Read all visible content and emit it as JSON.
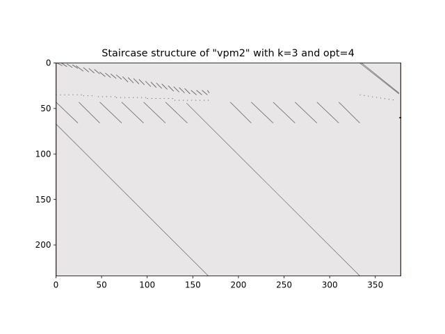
{
  "chart_data": {
    "type": "heatmap",
    "title": "Staircase structure of \"vpm2\" with k=3 and opt=4",
    "xlabel": "",
    "ylabel": "",
    "matrix": {
      "columns": 378,
      "rows": 234
    },
    "xlim": [
      0,
      378
    ],
    "ylim": [
      234,
      0
    ],
    "x_ticks": [
      0,
      50,
      100,
      150,
      200,
      250,
      300,
      350
    ],
    "y_ticks": [
      0,
      50,
      100,
      150,
      200
    ],
    "background_color": "#e8e6e6",
    "nonzero_color": "#555555",
    "border_column_color": "#e0a07a",
    "structure": {
      "long_diagonals": [
        {
          "col_start": 0,
          "row_start": 67,
          "col_end": 167,
          "row_end": 234
        },
        {
          "col_start": 143,
          "row_start": 44,
          "col_end": 333,
          "row_end": 234
        }
      ],
      "top_right_diagonals": [
        {
          "col_start": 333,
          "row_start": 0,
          "col_end": 376,
          "row_end": 34
        },
        {
          "col_start": 335,
          "row_start": 0,
          "col_end": 376,
          "row_end": 33
        }
      ],
      "small_segments_top": [
        {
          "col_start": 1,
          "col_end": 7,
          "row_start": 0,
          "row_end": 3
        },
        {
          "col_start": 6,
          "col_end": 12,
          "row_start": 0,
          "row_end": 4
        },
        {
          "col_start": 12,
          "col_end": 18,
          "row_start": 1,
          "row_end": 5
        },
        {
          "col_start": 18,
          "col_end": 24,
          "row_start": 2,
          "row_end": 6
        },
        {
          "col_start": 22,
          "col_end": 30,
          "row_start": 3,
          "row_end": 9
        },
        {
          "col_start": 30,
          "col_end": 36,
          "row_start": 5,
          "row_end": 10
        },
        {
          "col_start": 36,
          "col_end": 42,
          "row_start": 6,
          "row_end": 11
        },
        {
          "col_start": 42,
          "col_end": 48,
          "row_start": 7,
          "row_end": 12
        },
        {
          "col_start": 48,
          "col_end": 54,
          "row_start": 10,
          "row_end": 15
        },
        {
          "col_start": 54,
          "col_end": 60,
          "row_start": 11,
          "row_end": 16
        },
        {
          "col_start": 60,
          "col_end": 66,
          "row_start": 12,
          "row_end": 17
        },
        {
          "col_start": 66,
          "col_end": 72,
          "row_start": 13,
          "row_end": 18
        },
        {
          "col_start": 73,
          "col_end": 79,
          "row_start": 15,
          "row_end": 21
        },
        {
          "col_start": 79,
          "col_end": 85,
          "row_start": 16,
          "row_end": 22
        },
        {
          "col_start": 85,
          "col_end": 91,
          "row_start": 17,
          "row_end": 23
        },
        {
          "col_start": 91,
          "col_end": 97,
          "row_start": 18,
          "row_end": 24
        },
        {
          "col_start": 98,
          "col_end": 104,
          "row_start": 20,
          "row_end": 26
        },
        {
          "col_start": 104,
          "col_end": 110,
          "row_start": 21,
          "row_end": 27
        },
        {
          "col_start": 110,
          "col_end": 116,
          "row_start": 22,
          "row_end": 28
        },
        {
          "col_start": 116,
          "col_end": 122,
          "row_start": 23,
          "row_end": 29
        },
        {
          "col_start": 123,
          "col_end": 129,
          "row_start": 25,
          "row_end": 31
        },
        {
          "col_start": 129,
          "col_end": 135,
          "row_start": 26,
          "row_end": 32
        },
        {
          "col_start": 135,
          "col_end": 141,
          "row_start": 27,
          "row_end": 33
        },
        {
          "col_start": 141,
          "col_end": 147,
          "row_start": 28,
          "row_end": 34
        },
        {
          "col_start": 148,
          "col_end": 154,
          "row_start": 30,
          "row_end": 35
        },
        {
          "col_start": 154,
          "col_end": 160,
          "row_start": 30,
          "row_end": 35
        },
        {
          "col_start": 160,
          "col_end": 166,
          "row_start": 30,
          "row_end": 35
        },
        {
          "col_start": 166,
          "col_end": 168,
          "row_start": 30,
          "row_end": 33
        }
      ],
      "dotted_rows": [
        {
          "col_start": 0,
          "col_end": 30,
          "row_start": 35,
          "row_end": 35
        },
        {
          "col_start": 30,
          "col_end": 40,
          "row_start": 36,
          "row_end": 36
        },
        {
          "col_start": 46,
          "col_end": 66,
          "row_start": 37,
          "row_end": 37
        },
        {
          "col_start": 66,
          "col_end": 100,
          "row_start": 38,
          "row_end": 38
        },
        {
          "col_start": 100,
          "col_end": 130,
          "row_start": 39,
          "row_end": 39
        },
        {
          "col_start": 130,
          "col_end": 170,
          "row_start": 41,
          "row_end": 41
        },
        {
          "col_start": 333,
          "col_end": 372,
          "row_start": 35,
          "row_end": 41
        }
      ],
      "medium_segments": [
        {
          "col_start": 0,
          "col_end": 24,
          "row_start": 43,
          "row_end": 66
        },
        {
          "col_start": 25,
          "col_end": 48,
          "row_start": 43,
          "row_end": 66
        },
        {
          "col_start": 48,
          "col_end": 72,
          "row_start": 43,
          "row_end": 66
        },
        {
          "col_start": 72,
          "col_end": 96,
          "row_start": 43,
          "row_end": 66
        },
        {
          "col_start": 96,
          "col_end": 120,
          "row_start": 43,
          "row_end": 66
        },
        {
          "col_start": 120,
          "col_end": 144,
          "row_start": 43,
          "row_end": 66
        },
        {
          "col_start": 191,
          "col_end": 214,
          "row_start": 43,
          "row_end": 66
        },
        {
          "col_start": 214,
          "col_end": 238,
          "row_start": 43,
          "row_end": 66
        },
        {
          "col_start": 238,
          "col_end": 262,
          "row_start": 43,
          "row_end": 66
        },
        {
          "col_start": 262,
          "col_end": 286,
          "row_start": 43,
          "row_end": 66
        },
        {
          "col_start": 286,
          "col_end": 310,
          "row_start": 43,
          "row_end": 66
        },
        {
          "col_start": 310,
          "col_end": 333,
          "row_start": 43,
          "row_end": 66
        }
      ],
      "border_columns": [
        0,
        377
      ],
      "border_marks": [
        {
          "col": 377,
          "row": 60
        }
      ]
    }
  }
}
